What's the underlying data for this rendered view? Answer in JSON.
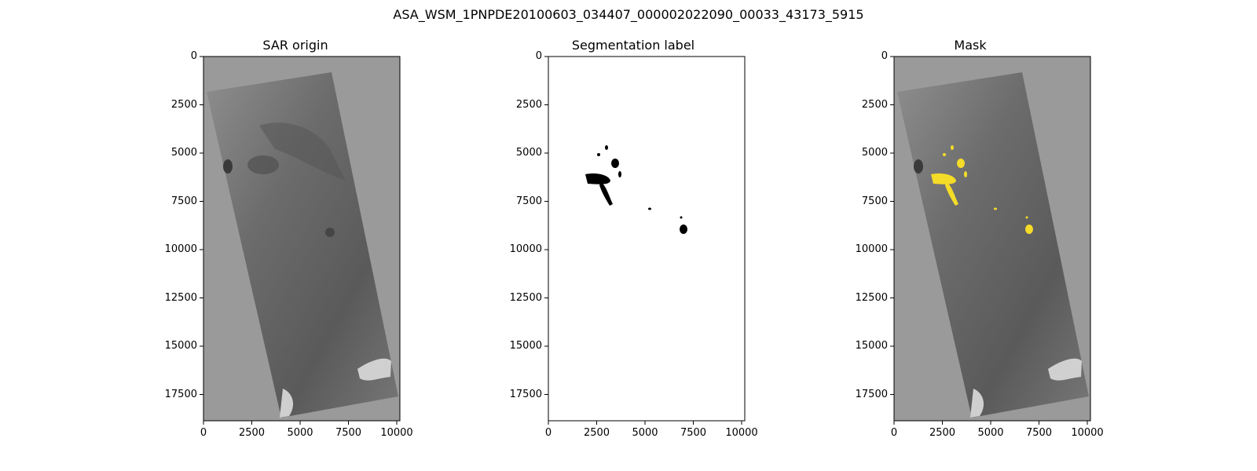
{
  "figure": {
    "suptitle": "ASA_WSM_1PNPDE20100603_034407_000002022090_00033_43173_5915"
  },
  "panels": [
    {
      "title": "SAR origin"
    },
    {
      "title": "Segmentation label"
    },
    {
      "title": "Mask"
    }
  ],
  "axes": {
    "xticks": [
      "0",
      "2500",
      "5000",
      "7500",
      "10000"
    ],
    "yticks": [
      "0",
      "2500",
      "5000",
      "7500",
      "10000",
      "12500",
      "15000",
      "17500"
    ]
  },
  "colors": {
    "background_gray": "#9a9a9a",
    "slick_black": "#000000",
    "mask_yellow": "#f5dc28"
  }
}
